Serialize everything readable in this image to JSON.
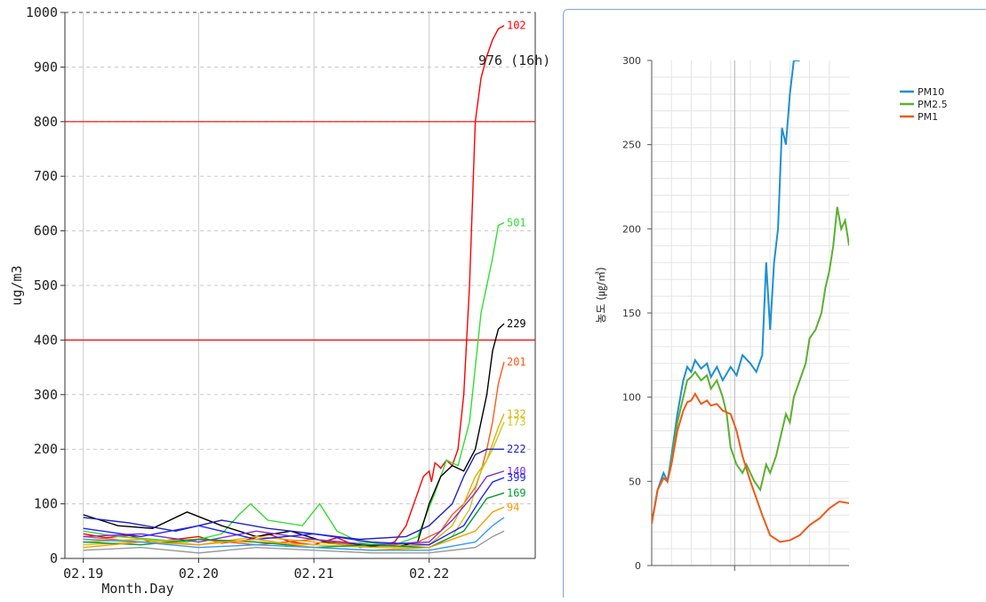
{
  "chart_data": [
    {
      "type": "line",
      "xlabel": "Month.Day",
      "ylabel": "ug/m3",
      "ylim": [
        0,
        1000
      ],
      "yticks": [
        0,
        100,
        200,
        300,
        400,
        500,
        600,
        700,
        800,
        900,
        1000
      ],
      "xticks": [
        "02.19",
        "02.20",
        "02.21",
        "02.22"
      ],
      "grid": true,
      "reference_lines": [
        800,
        400
      ],
      "annotation": "976 (16h)",
      "series": [
        {
          "name": "102",
          "color": "#ff0000",
          "x": [
            0.0,
            0.2,
            0.4,
            0.6,
            0.8,
            1.0,
            1.2,
            1.4,
            1.6,
            1.8,
            2.0,
            2.2,
            2.4,
            2.6,
            2.7,
            2.8,
            2.9,
            2.95,
            3.0,
            3.02,
            3.05,
            3.08,
            3.1,
            3.15,
            3.2,
            3.25,
            3.3,
            3.35,
            3.4,
            3.45,
            3.5,
            3.55,
            3.6,
            3.65
          ],
          "y": [
            45,
            38,
            42,
            30,
            35,
            40,
            28,
            33,
            45,
            30,
            25,
            38,
            20,
            25,
            30,
            60,
            120,
            150,
            160,
            140,
            175,
            170,
            165,
            180,
            170,
            200,
            300,
            500,
            800,
            880,
            920,
            950,
            970,
            976
          ]
        },
        {
          "name": "501",
          "color": "#33dd33",
          "x": [
            0.0,
            0.3,
            0.6,
            0.9,
            1.2,
            1.35,
            1.45,
            1.6,
            1.9,
            2.05,
            2.2,
            2.4,
            2.7,
            2.9,
            3.05,
            3.15,
            3.25,
            3.35,
            3.45,
            3.55,
            3.6,
            3.65
          ],
          "y": [
            50,
            40,
            35,
            30,
            45,
            80,
            100,
            70,
            60,
            100,
            50,
            30,
            25,
            40,
            120,
            180,
            170,
            250,
            450,
            550,
            610,
            615
          ]
        },
        {
          "name": "229",
          "color": "#000000",
          "x": [
            0.0,
            0.3,
            0.6,
            0.9,
            1.2,
            1.5,
            1.8,
            2.1,
            2.4,
            2.7,
            2.9,
            3.0,
            3.1,
            3.2,
            3.3,
            3.4,
            3.5,
            3.55,
            3.6,
            3.65
          ],
          "y": [
            80,
            60,
            55,
            85,
            60,
            40,
            50,
            30,
            25,
            20,
            30,
            100,
            150,
            170,
            160,
            200,
            300,
            380,
            420,
            430
          ]
        },
        {
          "name": "201",
          "color": "#ff5a1a",
          "x": [
            0.0,
            0.5,
            1.0,
            1.5,
            2.0,
            2.5,
            2.9,
            3.1,
            3.2,
            3.3,
            3.4,
            3.45,
            3.5,
            3.55,
            3.6,
            3.65
          ],
          "y": [
            40,
            30,
            35,
            25,
            35,
            20,
            30,
            50,
            80,
            100,
            130,
            160,
            200,
            250,
            320,
            360
          ]
        },
        {
          "name": "132",
          "color": "#e0b000",
          "x": [
            0.0,
            0.5,
            1.0,
            1.5,
            2.0,
            2.5,
            3.0,
            3.2,
            3.3,
            3.4,
            3.5,
            3.6,
            3.65
          ],
          "y": [
            30,
            35,
            25,
            40,
            30,
            20,
            25,
            60,
            100,
            150,
            180,
            240,
            265
          ]
        },
        {
          "name": "173",
          "color": "#c8c820",
          "x": [
            0.0,
            0.5,
            1.0,
            1.5,
            2.0,
            2.5,
            3.0,
            3.2,
            3.35,
            3.45,
            3.55,
            3.65
          ],
          "y": [
            25,
            30,
            35,
            30,
            25,
            20,
            20,
            40,
            90,
            160,
            200,
            250
          ]
        },
        {
          "name": "222",
          "color": "#2020c0",
          "x": [
            0.0,
            0.4,
            0.8,
            1.2,
            1.6,
            2.0,
            2.4,
            2.8,
            3.0,
            3.2,
            3.3,
            3.4,
            3.5,
            3.65
          ],
          "y": [
            75,
            65,
            50,
            70,
            55,
            45,
            35,
            40,
            60,
            100,
            150,
            190,
            200,
            200
          ]
        },
        {
          "name": "140",
          "color": "#7a30d0",
          "x": [
            0.0,
            0.5,
            1.0,
            1.5,
            2.0,
            2.5,
            3.0,
            3.2,
            3.4,
            3.5,
            3.65
          ],
          "y": [
            40,
            45,
            30,
            50,
            35,
            25,
            30,
            70,
            120,
            150,
            160
          ]
        },
        {
          "name": "399",
          "color": "#2020ff",
          "x": [
            0.0,
            0.5,
            1.0,
            1.5,
            2.0,
            2.5,
            3.0,
            3.3,
            3.45,
            3.55,
            3.65
          ],
          "y": [
            55,
            40,
            60,
            35,
            45,
            30,
            25,
            60,
            110,
            140,
            148
          ]
        },
        {
          "name": "169",
          "color": "#009933",
          "x": [
            0.0,
            0.5,
            1.0,
            1.5,
            2.0,
            2.5,
            3.0,
            3.3,
            3.5,
            3.65
          ],
          "y": [
            30,
            25,
            35,
            30,
            20,
            25,
            20,
            50,
            110,
            120
          ]
        },
        {
          "name": "94",
          "color": "#ff9900",
          "x": [
            0.0,
            0.5,
            1.0,
            1.5,
            2.0,
            2.5,
            3.0,
            3.4,
            3.55,
            3.65
          ],
          "y": [
            20,
            30,
            25,
            35,
            20,
            15,
            20,
            50,
            85,
            94
          ]
        },
        {
          "name": "",
          "color": "#3399ff",
          "x": [
            0.0,
            0.5,
            1.0,
            1.5,
            2.0,
            2.5,
            3.0,
            3.4,
            3.55,
            3.65
          ],
          "y": [
            35,
            30,
            20,
            25,
            20,
            15,
            15,
            30,
            60,
            75
          ]
        },
        {
          "name": "",
          "color": "#999999",
          "x": [
            0.0,
            0.5,
            1.0,
            1.5,
            2.0,
            2.5,
            3.0,
            3.4,
            3.55,
            3.65
          ],
          "y": [
            15,
            20,
            10,
            20,
            15,
            10,
            10,
            20,
            40,
            50
          ]
        }
      ]
    },
    {
      "type": "line",
      "ylabel": "농도 (㎍/㎥)",
      "ylim": [
        0,
        300
      ],
      "yticks": [
        0,
        50,
        100,
        150,
        200,
        250,
        300
      ],
      "grid": true,
      "legend_position": "top-right",
      "series": [
        {
          "name": "PM10",
          "color": "#1f8fd0",
          "x": [
            0.0,
            0.03,
            0.06,
            0.08,
            0.1,
            0.13,
            0.16,
            0.18,
            0.2,
            0.22,
            0.25,
            0.28,
            0.3,
            0.33,
            0.36,
            0.4,
            0.43,
            0.46,
            0.5,
            0.53,
            0.56,
            0.58,
            0.6,
            0.62,
            0.64,
            0.66,
            0.68,
            0.7,
            0.72,
            0.74,
            0.75
          ],
          "y": [
            25,
            45,
            55,
            50,
            65,
            90,
            110,
            118,
            115,
            122,
            117,
            120,
            112,
            118,
            110,
            118,
            113,
            125,
            120,
            115,
            125,
            180,
            140,
            180,
            200,
            260,
            250,
            280,
            300,
            300,
            300
          ]
        },
        {
          "name": "PM2.5",
          "color": "#5bb030",
          "x": [
            0.0,
            0.03,
            0.06,
            0.08,
            0.1,
            0.13,
            0.16,
            0.18,
            0.2,
            0.22,
            0.25,
            0.28,
            0.3,
            0.33,
            0.36,
            0.38,
            0.4,
            0.43,
            0.46,
            0.48,
            0.5,
            0.52,
            0.55,
            0.58,
            0.6,
            0.63,
            0.66,
            0.68,
            0.7,
            0.72,
            0.75,
            0.78,
            0.8,
            0.83,
            0.86,
            0.88,
            0.9,
            0.92,
            0.94,
            0.96,
            0.98,
            1.0
          ],
          "y": [
            25,
            45,
            52,
            50,
            62,
            85,
            100,
            110,
            112,
            115,
            110,
            113,
            105,
            110,
            100,
            90,
            70,
            60,
            55,
            60,
            55,
            50,
            45,
            60,
            55,
            65,
            80,
            90,
            85,
            100,
            110,
            120,
            135,
            140,
            150,
            165,
            175,
            190,
            213,
            200,
            205,
            190
          ]
        },
        {
          "name": "PM1",
          "color": "#ee5a1a",
          "x": [
            0.0,
            0.03,
            0.06,
            0.08,
            0.1,
            0.13,
            0.16,
            0.18,
            0.2,
            0.22,
            0.25,
            0.28,
            0.3,
            0.33,
            0.36,
            0.4,
            0.43,
            0.46,
            0.5,
            0.53,
            0.56,
            0.6,
            0.65,
            0.7,
            0.75,
            0.8,
            0.85,
            0.9,
            0.95,
            1.0
          ],
          "y": [
            25,
            45,
            52,
            50,
            60,
            80,
            92,
            97,
            98,
            102,
            96,
            98,
            95,
            96,
            92,
            90,
            80,
            65,
            50,
            40,
            30,
            18,
            14,
            15,
            18,
            24,
            28,
            34,
            38,
            37
          ]
        }
      ]
    }
  ]
}
